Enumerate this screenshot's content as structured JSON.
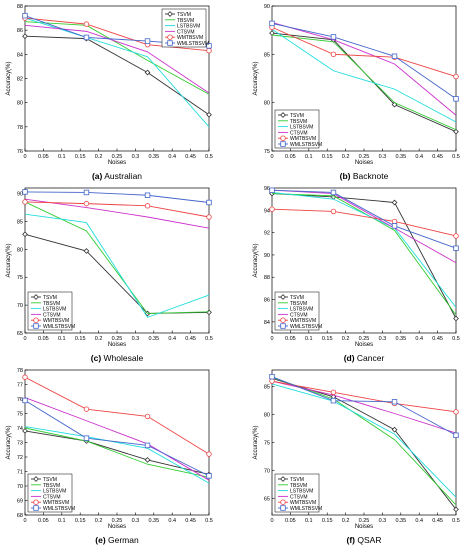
{
  "colors": {
    "TSVM": "#333333",
    "TBSVM": "#33cc33",
    "LSTBSVM": "#22dddd",
    "CTSVM": "#cc33cc",
    "WMTBSVM": "#ee4444",
    "WMLSTBSVM": "#4466cc"
  },
  "markers": {
    "TSVM": "diamond",
    "TBSVM": "none",
    "LSTBSVM": "none",
    "CTSVM": "none",
    "WMTBSVM": "circle",
    "WMLSTBSVM": "square"
  },
  "chart_data": [
    {
      "type": "line",
      "caption_letter": "(a)",
      "caption_name": "Australian",
      "xlabel": "Noises",
      "ylabel": "Accuracy(%)",
      "xlim": [
        0,
        0.5
      ],
      "ylim": [
        76,
        88
      ],
      "xticks": [
        0,
        0.05,
        0.1,
        0.15,
        0.2,
        0.25,
        0.3,
        0.35,
        0.4,
        0.45,
        0.5
      ],
      "xtick_labels": [
        "0",
        "0.05",
        "0.1",
        "0.15",
        "0.2",
        "0.25",
        "0.3",
        "0.35",
        "0.4",
        "0.45",
        "0.5"
      ],
      "yticks": [
        76,
        78,
        80,
        82,
        84,
        86,
        88
      ],
      "ytick_labels": [
        "76",
        "78",
        "80",
        "82",
        "84",
        "86",
        "88"
      ],
      "legend": "top-right",
      "x": [
        0,
        0.167,
        0.333,
        0.5
      ],
      "series": [
        {
          "name": "TSVM",
          "values": [
            85.5,
            85.3,
            82.5,
            79.0
          ]
        },
        {
          "name": "TBSVM",
          "values": [
            86.7,
            86.4,
            83.5,
            80.7
          ]
        },
        {
          "name": "LSTBSVM",
          "values": [
            87.0,
            85.4,
            83.8,
            78.0
          ]
        },
        {
          "name": "CTSVM",
          "values": [
            86.4,
            85.9,
            84.2,
            80.8
          ]
        },
        {
          "name": "WMTBSVM",
          "values": [
            87.0,
            86.5,
            84.8,
            84.3
          ]
        },
        {
          "name": "WMLSTBSVM",
          "values": [
            87.2,
            85.4,
            85.1,
            84.7
          ]
        }
      ]
    },
    {
      "type": "line",
      "caption_letter": "(b)",
      "caption_name": "Backnote",
      "xlabel": "Noises",
      "ylabel": "Accuracy(%)",
      "xlim": [
        0,
        0.5
      ],
      "ylim": [
        75,
        90
      ],
      "xticks": [
        0,
        0.05,
        0.1,
        0.15,
        0.2,
        0.25,
        0.3,
        0.35,
        0.4,
        0.45,
        0.5
      ],
      "xtick_labels": [
        "0",
        "0.05",
        "0.1",
        "0.15",
        "0.2",
        "0.25",
        "0.3",
        "0.35",
        "0.4",
        "0.45",
        "0.5"
      ],
      "yticks": [
        75,
        80,
        85,
        90
      ],
      "ytick_labels": [
        "75",
        "80",
        "85",
        "90"
      ],
      "legend": "bottom-left",
      "x": [
        0,
        0.167,
        0.333,
        0.5
      ],
      "series": [
        {
          "name": "TSVM",
          "values": [
            87.2,
            86.5,
            79.8,
            77.0
          ]
        },
        {
          "name": "TBSVM",
          "values": [
            87.0,
            86.3,
            80.0,
            77.2
          ]
        },
        {
          "name": "LSTBSVM",
          "values": [
            87.6,
            83.3,
            81.4,
            78.0
          ]
        },
        {
          "name": "CTSVM",
          "values": [
            88.3,
            86.5,
            84.0,
            78.7
          ]
        },
        {
          "name": "WMTBSVM",
          "values": [
            87.8,
            85.0,
            84.7,
            82.7
          ]
        },
        {
          "name": "WMLSTBSVM",
          "values": [
            88.2,
            86.8,
            84.8,
            80.4
          ]
        }
      ]
    },
    {
      "type": "line",
      "caption_letter": "(c)",
      "caption_name": "Wholesale",
      "xlabel": "Noises",
      "ylabel": "Accuracy(%)",
      "xlim": [
        0,
        0.5
      ],
      "ylim": [
        65,
        91
      ],
      "xticks": [
        0,
        0.05,
        0.1,
        0.15,
        0.2,
        0.25,
        0.3,
        0.35,
        0.4,
        0.45,
        0.5
      ],
      "xtick_labels": [
        "0",
        "0.05",
        "0.1",
        "0.15",
        "0.2",
        "0.25",
        "0.3",
        "0.35",
        "0.4",
        "0.45",
        "0.5"
      ],
      "yticks": [
        65,
        70,
        75,
        80,
        85,
        90
      ],
      "ytick_labels": [
        "65",
        "70",
        "75",
        "80",
        "85",
        "90"
      ],
      "legend": "bottom-left",
      "x": [
        0,
        0.167,
        0.333,
        0.5
      ],
      "series": [
        {
          "name": "TSVM",
          "values": [
            82.7,
            79.7,
            68.5,
            68.7
          ]
        },
        {
          "name": "TBSVM",
          "values": [
            88.5,
            83.3,
            68.5,
            68.8
          ]
        },
        {
          "name": "LSTBSVM",
          "values": [
            86.3,
            84.8,
            67.8,
            71.8
          ]
        },
        {
          "name": "CTSVM",
          "values": [
            89.0,
            87.5,
            85.8,
            83.8
          ]
        },
        {
          "name": "WMTBSVM",
          "values": [
            88.5,
            88.2,
            87.8,
            85.8
          ]
        },
        {
          "name": "WMLSTBSVM",
          "values": [
            90.3,
            90.2,
            89.7,
            88.4
          ]
        }
      ]
    },
    {
      "type": "line",
      "caption_letter": "(d)",
      "caption_name": "Cancer",
      "xlabel": "Noises",
      "ylabel": "Accuracy(%)",
      "xlim": [
        0,
        0.5
      ],
      "ylim": [
        83,
        96
      ],
      "xticks": [
        0,
        0.05,
        0.1,
        0.15,
        0.2,
        0.25,
        0.3,
        0.35,
        0.4,
        0.45,
        0.5
      ],
      "xtick_labels": [
        "0",
        "0.05",
        "0.1",
        "0.15",
        "0.2",
        "0.25",
        "0.3",
        "0.35",
        "0.4",
        "0.45",
        "0.5"
      ],
      "yticks": [
        84,
        86,
        88,
        90,
        92,
        94,
        96
      ],
      "ytick_labels": [
        "84",
        "86",
        "88",
        "90",
        "92",
        "94",
        "96"
      ],
      "legend": "bottom-left",
      "x": [
        0,
        0.167,
        0.333,
        0.5
      ],
      "series": [
        {
          "name": "TSVM",
          "values": [
            95.5,
            95.2,
            94.7,
            84.3
          ]
        },
        {
          "name": "TBSVM",
          "values": [
            95.5,
            95.3,
            92.2,
            84.6
          ]
        },
        {
          "name": "LSTBSVM",
          "values": [
            95.6,
            95.0,
            92.4,
            85.3
          ]
        },
        {
          "name": "CTSVM",
          "values": [
            95.8,
            95.5,
            92.4,
            89.3
          ]
        },
        {
          "name": "WMTBSVM",
          "values": [
            94.1,
            93.9,
            93.0,
            91.7
          ]
        },
        {
          "name": "WMLSTBSVM",
          "values": [
            95.8,
            95.6,
            92.6,
            90.6
          ]
        }
      ]
    },
    {
      "type": "line",
      "caption_letter": "(e)",
      "caption_name": "German",
      "xlabel": "Noises",
      "ylabel": "Accuracy(%)",
      "xlim": [
        0,
        0.5
      ],
      "ylim": [
        68,
        78
      ],
      "xticks": [
        0,
        0.05,
        0.1,
        0.15,
        0.2,
        0.25,
        0.3,
        0.35,
        0.4,
        0.45,
        0.5
      ],
      "xtick_labels": [
        "0",
        "0.05",
        "0.1",
        "0.15",
        "0.2",
        "0.25",
        "0.3",
        "0.35",
        "0.4",
        "0.45",
        "0.5"
      ],
      "yticks": [
        68,
        69,
        70,
        71,
        72,
        73,
        74,
        75,
        76,
        77,
        78
      ],
      "ytick_labels": [
        "68",
        "69",
        "70",
        "71",
        "72",
        "73",
        "74",
        "75",
        "76",
        "77",
        "78"
      ],
      "legend": "bottom-left",
      "x": [
        0,
        0.167,
        0.333,
        0.5
      ],
      "series": [
        {
          "name": "TSVM",
          "values": [
            73.8,
            73.1,
            71.8,
            70.8
          ]
        },
        {
          "name": "TBSVM",
          "values": [
            74.0,
            73.1,
            71.5,
            70.6
          ]
        },
        {
          "name": "LSTBSVM",
          "values": [
            74.1,
            73.4,
            72.6,
            70.2
          ]
        },
        {
          "name": "CTSVM",
          "values": [
            76.1,
            74.5,
            72.9,
            70.4
          ]
        },
        {
          "name": "WMTBSVM",
          "values": [
            77.5,
            75.3,
            74.8,
            72.2
          ]
        },
        {
          "name": "WMLSTBSVM",
          "values": [
            75.9,
            73.3,
            72.8,
            70.7
          ]
        }
      ]
    },
    {
      "type": "line",
      "caption_letter": "(f)",
      "caption_name": "QSAR",
      "xlabel": "Noises",
      "ylabel": "Accuracy(%)",
      "xlim": [
        0,
        0.5
      ],
      "ylim": [
        62,
        88
      ],
      "xticks": [
        0,
        0.05,
        0.1,
        0.15,
        0.2,
        0.25,
        0.3,
        0.35,
        0.4,
        0.45,
        0.5
      ],
      "xtick_labels": [
        "0",
        "0.05",
        "0.1",
        "0.15",
        "0.2",
        "0.25",
        "0.3",
        "0.35",
        "0.4",
        "0.45",
        "0.5"
      ],
      "yticks": [
        65,
        70,
        75,
        80,
        85
      ],
      "ytick_labels": [
        "65",
        "70",
        "75",
        "80",
        "85"
      ],
      "legend": "bottom-left",
      "x": [
        0,
        0.167,
        0.333,
        0.5
      ],
      "series": [
        {
          "name": "TSVM",
          "values": [
            86.5,
            83.2,
            77.3,
            63.0
          ]
        },
        {
          "name": "TBSVM",
          "values": [
            86.7,
            82.8,
            75.5,
            63.8
          ]
        },
        {
          "name": "LSTBSVM",
          "values": [
            85.5,
            82.4,
            76.5,
            65.2
          ]
        },
        {
          "name": "CTSVM",
          "values": [
            86.0,
            83.5,
            80.2,
            76.7
          ]
        },
        {
          "name": "WMTBSVM",
          "values": [
            86.0,
            84.0,
            82.0,
            80.5
          ]
        },
        {
          "name": "WMLSTBSVM",
          "values": [
            86.8,
            82.5,
            82.3,
            76.3
          ]
        }
      ]
    }
  ]
}
